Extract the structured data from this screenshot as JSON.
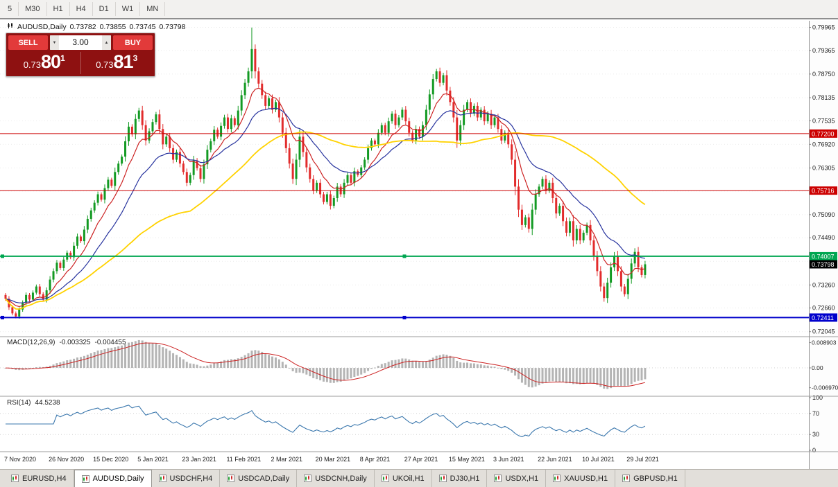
{
  "toolbar": {
    "items": [
      "5",
      "M30",
      "H1",
      "H4",
      "D1",
      "W1",
      "MN"
    ]
  },
  "ohlc": {
    "symbol": "AUDUSD,Daily",
    "open": "0.73782",
    "high": "0.73855",
    "low": "0.73745",
    "close": "0.73798"
  },
  "trade_panel": {
    "sell_label": "SELL",
    "buy_label": "BUY",
    "lot": "3.00",
    "sell": {
      "base": "0.73",
      "pips": "80",
      "point": "1"
    },
    "buy": {
      "base": "0.73",
      "pips": "81",
      "point": "3"
    },
    "panel_color": "#8e1111",
    "button_color": "#e23a3a"
  },
  "icons": {
    "spin_down": "▼",
    "spin_up": "▲"
  },
  "colors": {
    "bull": "#139a23",
    "bear": "#e22c2c",
    "grid": "#ebebeb",
    "macd_hist": "#b4b4b4",
    "macd_signal": "#cc2222",
    "rsi_line": "#3a77ad"
  },
  "macd": {
    "name": "MACD(12,26,9)",
    "value_main": "-0.003325",
    "value_signal": "-0.004455",
    "fast": 12,
    "slow": 26,
    "signal": 9,
    "ylim": [
      -0.0095,
      0.0105
    ],
    "scale": [
      {
        "text": "0.008903",
        "value": 0.008903
      },
      {
        "text": "0.00",
        "value": 0
      },
      {
        "text": "-0.006970",
        "value": -0.00697
      }
    ]
  },
  "rsi": {
    "name": "RSI(14)",
    "value": "44.5238",
    "period": 14,
    "levels": [
      {
        "text": "100",
        "value": 100
      },
      {
        "text": "70",
        "value": 70
      },
      {
        "text": "30",
        "value": 30
      },
      {
        "text": "0",
        "value": 0
      }
    ]
  },
  "tabs": {
    "active_index": 1,
    "items": [
      "EURUSD,H4",
      "AUDUSD,Daily",
      "USDCHF,H4",
      "USDCAD,Daily",
      "USDCNH,Daily",
      "UKOil,H1",
      "DJ30,H1",
      "USDX,H1",
      "XAUUSD,H1",
      "GBPUSD,H1"
    ]
  },
  "chart_data": {
    "type": "candlestick",
    "symbol": "AUDUSD",
    "timeframe": "Daily",
    "ylim": [
      0.7195,
      0.801
    ],
    "first_open": 0.73,
    "closes": [
      0.729,
      0.7268,
      0.7252,
      0.7244,
      0.7262,
      0.728,
      0.73,
      0.7288,
      0.7306,
      0.7322,
      0.7302,
      0.7288,
      0.7312,
      0.734,
      0.7362,
      0.7384,
      0.737,
      0.7392,
      0.741,
      0.7398,
      0.7428,
      0.7452,
      0.744,
      0.747,
      0.7498,
      0.752,
      0.754,
      0.7562,
      0.7548,
      0.7578,
      0.76,
      0.7584,
      0.762,
      0.7642,
      0.766,
      0.77,
      0.7738,
      0.7718,
      0.7758,
      0.778,
      0.7742,
      0.7702,
      0.7726,
      0.775,
      0.777,
      0.7732,
      0.7692,
      0.7712,
      0.7682,
      0.7652,
      0.7672,
      0.7642,
      0.762,
      0.7592,
      0.7612,
      0.765,
      0.763,
      0.7602,
      0.764,
      0.7678,
      0.77,
      0.773,
      0.7712,
      0.774,
      0.7762,
      0.7732,
      0.776,
      0.7742,
      0.778,
      0.782,
      0.7852,
      0.7882,
      0.794,
      0.7882,
      0.785,
      0.782,
      0.7792,
      0.7812,
      0.7782,
      0.7802,
      0.7762,
      0.7722,
      0.7682,
      0.7642,
      0.7602,
      0.7652,
      0.7712,
      0.7672,
      0.7632,
      0.7602,
      0.7572,
      0.7592,
      0.7562,
      0.7542,
      0.7562,
      0.7532,
      0.7552,
      0.7582,
      0.7562,
      0.7592,
      0.7612,
      0.7592,
      0.7622,
      0.7612,
      0.7632,
      0.7652,
      0.7682,
      0.7702,
      0.7692,
      0.7722,
      0.7742,
      0.7722,
      0.7752,
      0.7772,
      0.7742,
      0.7762,
      0.7782,
      0.7752,
      0.7722,
      0.7702,
      0.7732,
      0.7712,
      0.7742,
      0.7782,
      0.7822,
      0.7862,
      0.7882,
      0.7852,
      0.7872,
      0.7832,
      0.7802,
      0.7762,
      0.7702,
      0.7742,
      0.7782,
      0.7802,
      0.7772,
      0.7792,
      0.7762,
      0.7782,
      0.7752,
      0.7772,
      0.7742,
      0.7762,
      0.7732,
      0.7702,
      0.7722,
      0.7692,
      0.7652,
      0.7582,
      0.7522,
      0.7482,
      0.7502,
      0.7472,
      0.7522,
      0.7562,
      0.7582,
      0.7602,
      0.7572,
      0.7592,
      0.7552,
      0.7512,
      0.7532,
      0.7492,
      0.7462,
      0.7492,
      0.7442,
      0.7472,
      0.7442,
      0.7462,
      0.7482,
      0.7442,
      0.7402,
      0.7362,
      0.7322,
      0.7292,
      0.7332,
      0.7372,
      0.7402,
      0.7362,
      0.7322,
      0.7302,
      0.7342,
      0.7382,
      0.7412,
      0.7372,
      0.7352,
      0.73798
    ],
    "wick_high_overrides": {
      "72": 0.7996,
      "73": 0.7952
    },
    "x_label_every": 13,
    "x_labels": [
      "7 Nov 2020",
      "26 Nov 2020",
      "15 Dec 2020",
      "5 Jan 2021",
      "23 Jan 2021",
      "11 Feb 2021",
      "2 Mar 2021",
      "20 Mar 2021",
      "8 Apr 2021",
      "27 Apr 2021",
      "15 May 2021",
      "3 Jun 2021",
      "22 Jun 2021",
      "10 Jul 2021",
      "29 Jul 2021"
    ],
    "price_axis_ticks": [
      "0.79965",
      "0.79365",
      "0.78750",
      "0.78135",
      "0.77535",
      "0.76920",
      "0.76305",
      "0.75705",
      "0.75090",
      "0.74490",
      "0.73875",
      "0.73260",
      "0.72660",
      "0.72045"
    ],
    "moving_averages": [
      {
        "period": 9,
        "type": "ema",
        "color": "#cc2222",
        "width": 1.2
      },
      {
        "period": 21,
        "type": "ema",
        "color": "#27339e",
        "width": 1.2
      },
      {
        "period": 55,
        "type": "sma",
        "color": "#ffd200",
        "width": 1.8
      }
    ],
    "horizontal_lines": [
      {
        "value": 0.772,
        "label": "0.77200",
        "color": "#cc0000",
        "width": 1,
        "handles": false
      },
      {
        "value": 0.75716,
        "label": "0.75716",
        "color": "#cc0000",
        "width": 1,
        "handles": false
      },
      {
        "value": 0.74007,
        "label": "0.74007",
        "color": "#00a651",
        "width": 2,
        "handles": true
      },
      {
        "value": 0.72411,
        "label": "0.72411",
        "color": "#0000cc",
        "width": 2,
        "handles": true
      }
    ],
    "last_price": {
      "label": "0.73798",
      "value": 0.73798,
      "color": "#000000"
    }
  }
}
